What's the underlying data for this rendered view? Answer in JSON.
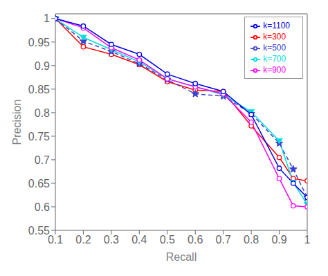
{
  "chart_data": {
    "type": "line",
    "xlabel": "Recall",
    "ylabel": "Precision",
    "xlim": [
      0.1,
      1.0
    ],
    "ylim": [
      0.55,
      1.01
    ],
    "xticks": [
      0.1,
      0.2,
      0.3,
      0.4,
      0.5,
      0.6,
      0.7,
      0.8,
      0.9,
      1
    ],
    "yticks": [
      0.55,
      0.6,
      0.65,
      0.7,
      0.75,
      0.8,
      0.85,
      0.9,
      0.95,
      1
    ],
    "grid": false,
    "legend": "upper right",
    "x": [
      0.1,
      0.2,
      0.3,
      0.4,
      0.5,
      0.6,
      0.7,
      0.8,
      0.9,
      0.95,
      1.0
    ],
    "series": [
      {
        "name": "k=300",
        "color": "#ff0000",
        "marker": "open-circle",
        "line_style": "solid",
        "values": [
          1.0,
          0.94,
          0.924,
          0.902,
          0.866,
          0.848,
          0.845,
          0.772,
          0.705,
          0.66,
          0.655
        ]
      },
      {
        "name": "k=500",
        "color": "#4040d0",
        "marker": "star",
        "line_style": "dashed",
        "values": [
          1.0,
          0.952,
          0.93,
          0.904,
          0.87,
          0.84,
          0.835,
          0.798,
          0.735,
          0.68,
          0.62
        ]
      },
      {
        "name": "k=700",
        "color": "#00dddd",
        "marker": "triangle-down",
        "line_style": "solid",
        "values": [
          1.0,
          0.96,
          0.934,
          0.908,
          0.872,
          0.855,
          0.838,
          0.802,
          0.74,
          0.652,
          0.605
        ]
      },
      {
        "name": "k=900",
        "color": "#ff00ff",
        "marker": "open-circle",
        "line_style": "solid",
        "values": [
          1.0,
          0.98,
          0.938,
          0.912,
          0.872,
          0.855,
          0.84,
          0.78,
          0.66,
          0.602,
          0.6
        ]
      },
      {
        "name": "k=1100",
        "color": "#0000ee",
        "marker": "open-circle",
        "line_style": "solid",
        "values": [
          1.0,
          0.984,
          0.945,
          0.924,
          0.882,
          0.862,
          0.845,
          0.796,
          0.682,
          0.65,
          0.62
        ]
      }
    ]
  }
}
